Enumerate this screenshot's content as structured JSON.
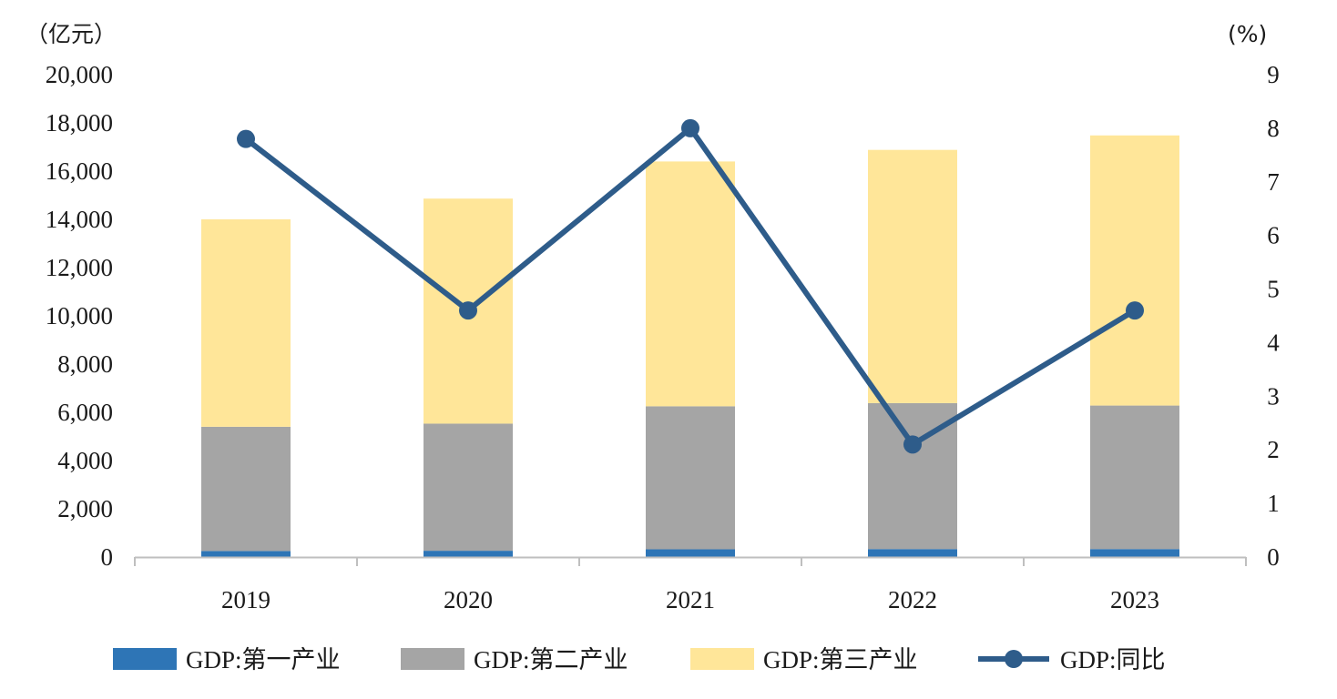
{
  "chart_data": {
    "type": "bar",
    "stacked": true,
    "categories": [
      "2019",
      "2020",
      "2021",
      "2022",
      "2023"
    ],
    "left_unit": "（亿元）",
    "right_unit": "(%)",
    "left_axis": {
      "min": 0,
      "max": 20000,
      "step": 2000,
      "ticks": [
        "0",
        "2,000",
        "4,000",
        "6,000",
        "8,000",
        "10,000",
        "12,000",
        "14,000",
        "16,000",
        "18,000",
        "20,000"
      ]
    },
    "right_axis": {
      "min": 0,
      "max": 9,
      "step": 1,
      "ticks": [
        "0",
        "1",
        "2",
        "3",
        "4",
        "5",
        "6",
        "7",
        "8",
        "9"
      ]
    },
    "series": [
      {
        "name": "GDP:第一产业",
        "kind": "bar",
        "axis": "left",
        "color": "#2e75b6",
        "values": [
          250,
          260,
          320,
          330,
          330
        ]
      },
      {
        "name": "GDP:第二产业",
        "kind": "bar",
        "axis": "left",
        "color": "#a5a5a5",
        "values": [
          5150,
          5270,
          5930,
          6050,
          5950
        ]
      },
      {
        "name": "GDP:第三产业",
        "kind": "bar",
        "axis": "left",
        "color": "#ffe699",
        "values": [
          8600,
          9330,
          10150,
          10500,
          11200
        ]
      },
      {
        "name": "GDP:同比",
        "kind": "line",
        "axis": "right",
        "color": "#2e5c8a",
        "values": [
          7.8,
          4.6,
          8.0,
          2.1,
          4.6
        ]
      }
    ],
    "legend_position": "bottom",
    "grid": false
  }
}
